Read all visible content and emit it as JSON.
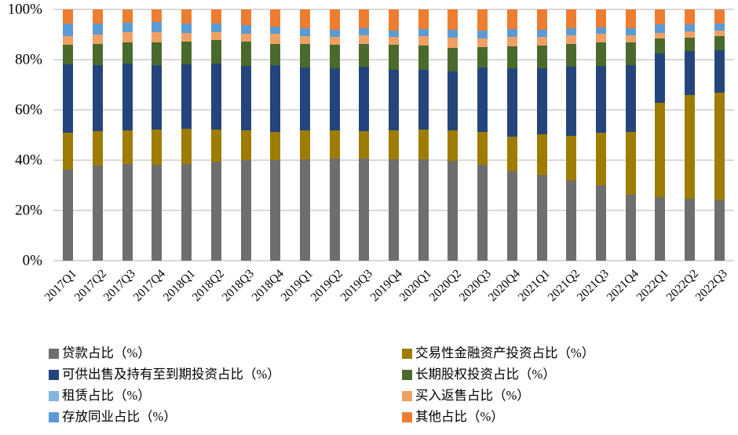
{
  "chart_data": {
    "type": "bar",
    "stacked": true,
    "percent_stacked": true,
    "title": "",
    "xlabel": "",
    "ylabel": "",
    "ylim": [
      0,
      100
    ],
    "yticks": [
      {
        "value": 0,
        "label": "0%"
      },
      {
        "value": 20,
        "label": "20%"
      },
      {
        "value": 40,
        "label": "40%"
      },
      {
        "value": 60,
        "label": "60%"
      },
      {
        "value": 80,
        "label": "80%"
      },
      {
        "value": 100,
        "label": "100%"
      }
    ],
    "grid": true,
    "legend_position": "bottom-two-columns",
    "categories": [
      "2017Q1",
      "2017Q2",
      "2017Q3",
      "2017Q4",
      "2018Q1",
      "2018Q2",
      "2018Q3",
      "2018Q4",
      "2019Q1",
      "2019Q2",
      "2019Q3",
      "2019Q4",
      "2020Q1",
      "2020Q2",
      "2020Q3",
      "2020Q4",
      "2021Q1",
      "2021Q2",
      "2021Q3",
      "2021Q4",
      "2022Q1",
      "2022Q2",
      "2022Q3"
    ],
    "series": [
      {
        "name": "贷款占比（%）",
        "color": "#6E6E6E",
        "values": [
          36.3,
          37.7,
          38.3,
          38.0,
          38.5,
          39.4,
          39.9,
          40.1,
          40.4,
          40.6,
          40.6,
          40.4,
          40.4,
          39.8,
          38.2,
          35.6,
          34.2,
          31.8,
          29.9,
          26.4,
          25.2,
          24.7,
          24.1
        ]
      },
      {
        "name": "交易性金融资产投资占比（%）",
        "color": "#9E7C00",
        "values": [
          14.7,
          14.0,
          13.7,
          14.2,
          14.0,
          12.8,
          12.1,
          11.2,
          11.4,
          11.4,
          11.1,
          11.6,
          11.8,
          12.2,
          13.0,
          13.8,
          16.1,
          17.8,
          20.9,
          24.9,
          37.7,
          41.1,
          42.9
        ]
      },
      {
        "name": "可供出售及持有至到期投资占比（%）",
        "color": "#24457C",
        "values": [
          27.1,
          26.1,
          26.4,
          25.5,
          25.6,
          26.2,
          25.5,
          26.6,
          25.1,
          24.6,
          25.4,
          23.9,
          23.9,
          23.3,
          25.7,
          27.2,
          26.3,
          27.5,
          26.6,
          26.4,
          19.5,
          17.6,
          16.9
        ]
      },
      {
        "name": "长期股权投资占比（%）",
        "color": "#4A6A2D",
        "values": [
          7.9,
          8.6,
          8.5,
          9.3,
          9.2,
          9.4,
          9.7,
          8.5,
          9.3,
          9.4,
          9.3,
          10.1,
          9.6,
          9.4,
          8.1,
          8.8,
          9.1,
          9.3,
          9.5,
          9.2,
          5.9,
          5.5,
          5.4
        ]
      },
      {
        "name": "租赁占比（%）",
        "color": "#84B4E0",
        "values": [
          0,
          0,
          0,
          0,
          0,
          0,
          0,
          0,
          0,
          0,
          0,
          0,
          0,
          0,
          0,
          0,
          0,
          0,
          0,
          0,
          0,
          0,
          0
        ]
      },
      {
        "name": "买入返售占比（%）",
        "color": "#F1A064",
        "values": [
          3.3,
          3.5,
          4.0,
          3.9,
          3.3,
          3.2,
          3.1,
          4.0,
          3.3,
          3.1,
          3.4,
          3.1,
          3.8,
          4.1,
          3.5,
          3.7,
          3.4,
          3.4,
          3.5,
          2.9,
          2.4,
          2.3,
          2.2
        ]
      },
      {
        "name": "存放同业占比（%）",
        "color": "#5B9BD5",
        "values": [
          5.0,
          4.6,
          3.8,
          4.0,
          3.7,
          3.3,
          3.6,
          2.6,
          2.9,
          2.8,
          2.8,
          2.5,
          2.7,
          3.1,
          3.1,
          3.1,
          2.8,
          2.8,
          2.5,
          2.8,
          3.3,
          2.9,
          2.8
        ]
      },
      {
        "name": "其他占比（%）",
        "color": "#ED7D31",
        "values": [
          5.7,
          5.5,
          5.3,
          5.1,
          5.7,
          5.7,
          6.1,
          7.0,
          7.6,
          8.1,
          7.4,
          8.4,
          7.8,
          8.1,
          8.4,
          7.8,
          8.1,
          7.4,
          7.1,
          7.4,
          6.0,
          5.9,
          5.7
        ]
      }
    ],
    "colors": {
      "gridline": "#d9d9d9",
      "axis_text": "#000000",
      "background": "#ffffff"
    }
  }
}
